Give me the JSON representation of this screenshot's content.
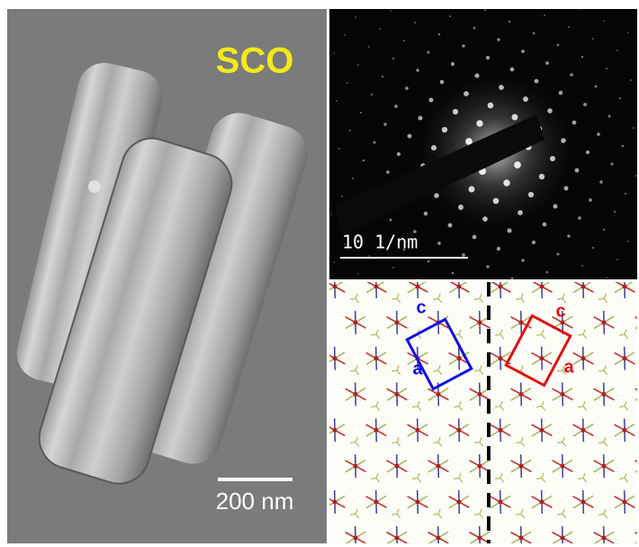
{
  "sem": {
    "label": "SCO",
    "scale_bar": "200 nm"
  },
  "diffraction": {
    "scale_bar": "10 1/nm"
  },
  "lattice": {
    "left_cell": {
      "c": "c",
      "a": "a"
    },
    "right_cell": {
      "c": "c",
      "a": "a"
    }
  }
}
